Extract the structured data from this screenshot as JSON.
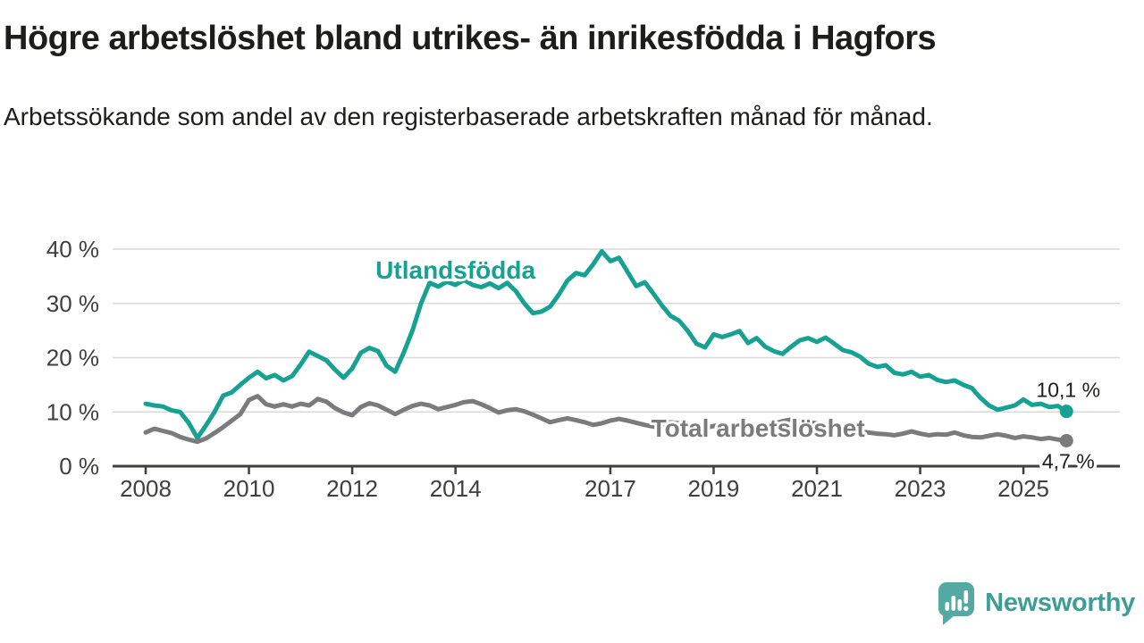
{
  "header": {
    "title": "Högre arbetslöshet bland utrikes- än inrikesfödda i Hagfors",
    "subtitle": "Arbetssökande som andel av den registerbaserade arbetskraften månad för månad."
  },
  "chart_data": {
    "type": "line",
    "unit": "%",
    "grid": "horizontal",
    "x_axis": {
      "tick_years": [
        2008,
        2010,
        2012,
        2014,
        2017,
        2019,
        2021,
        2023,
        2025
      ],
      "tick_labels": [
        "2008",
        "2010",
        "2012",
        "2014",
        "2017",
        "2019",
        "2021",
        "2023",
        "2025"
      ]
    },
    "y_axis": {
      "ticks": [
        0,
        10,
        20,
        30,
        40
      ],
      "tick_labels": [
        "0 %",
        "10 %",
        "20 %",
        "30 %",
        "40 %"
      ],
      "range": [
        0,
        42
      ]
    },
    "x_start_year": 2008.0,
    "x_step_years": 0.16667,
    "x_end_year": 2025.83,
    "series": [
      {
        "name": "Utlandsfödda",
        "color": "#17a192",
        "label_anchor": {
          "year": 2014.0,
          "pct": 34.6
        },
        "end_annotation": {
          "text": "10,1 %",
          "value": 10.1,
          "position": "above"
        },
        "values": [
          11.5,
          11.2,
          11.0,
          10.3,
          10.0,
          8.0,
          5.2,
          7.5,
          10.0,
          13.0,
          13.6,
          15.0,
          16.3,
          17.4,
          16.2,
          16.8,
          15.8,
          16.6,
          18.7,
          21.1,
          20.3,
          19.5,
          17.8,
          16.3,
          18.0,
          20.9,
          21.8,
          21.2,
          18.5,
          17.4,
          21.0,
          25.0,
          30.0,
          33.8,
          33.1,
          34.0,
          33.4,
          34.3,
          33.4,
          33.0,
          33.7,
          32.8,
          33.8,
          32.3,
          30.0,
          28.2,
          28.5,
          29.4,
          31.6,
          34.2,
          35.6,
          35.2,
          37.2,
          39.6,
          37.8,
          38.4,
          35.8,
          33.2,
          33.9,
          31.8,
          29.6,
          27.7,
          26.8,
          24.9,
          22.6,
          21.9,
          24.3,
          23.8,
          24.3,
          24.9,
          22.7,
          23.6,
          22.0,
          21.2,
          20.7,
          22.0,
          23.2,
          23.6,
          22.9,
          23.7,
          22.6,
          21.4,
          21.0,
          20.2,
          18.9,
          18.3,
          18.6,
          17.2,
          16.9,
          17.4,
          16.5,
          16.8,
          15.9,
          15.5,
          15.8,
          15.0,
          14.4,
          12.6,
          11.2,
          10.4,
          10.8,
          11.2,
          12.3,
          11.3,
          11.5,
          10.9,
          11.1,
          10.1
        ]
      },
      {
        "name": "Total arbetslöshet",
        "color": "#7b7b7e",
        "label_anchor": {
          "year": 2019.86,
          "pct": 5.4
        },
        "end_annotation": {
          "text": "4,7 %",
          "value": 4.7,
          "position": "below"
        },
        "values": [
          6.2,
          6.9,
          6.5,
          6.1,
          5.4,
          4.9,
          4.5,
          5.1,
          6.1,
          7.2,
          8.4,
          9.6,
          12.2,
          12.9,
          11.4,
          11.0,
          11.4,
          11.0,
          11.5,
          11.2,
          12.4,
          11.9,
          10.7,
          9.9,
          9.4,
          10.9,
          11.6,
          11.2,
          10.4,
          9.6,
          10.4,
          11.1,
          11.5,
          11.2,
          10.5,
          10.9,
          11.3,
          11.8,
          12.0,
          11.4,
          10.7,
          9.9,
          10.3,
          10.5,
          10.1,
          9.5,
          8.8,
          8.1,
          8.5,
          8.8,
          8.5,
          8.1,
          7.6,
          7.9,
          8.4,
          8.7,
          8.4,
          8.0,
          7.6,
          7.3,
          7.8,
          8.1,
          7.9,
          7.5,
          7.2,
          7.0,
          7.4,
          7.6,
          7.4,
          7.2,
          7.0,
          7.1,
          7.4,
          7.8,
          8.3,
          8.6,
          8.4,
          8.1,
          7.9,
          7.7,
          7.3,
          7.0,
          6.7,
          6.4,
          6.2,
          6.0,
          5.9,
          5.7,
          6.0,
          6.4,
          6.0,
          5.7,
          5.9,
          5.8,
          6.2,
          5.7,
          5.4,
          5.3,
          5.6,
          5.9,
          5.6,
          5.2,
          5.5,
          5.3,
          5.0,
          5.2,
          4.9,
          4.7
        ]
      }
    ],
    "colors": {
      "gridline": "#d9d9d9",
      "axis": "#3f3f3e",
      "tick_text": "#3f3f3e",
      "annotation_text": "#1d1d1b"
    }
  },
  "branding": {
    "logo_text": "Newsworthy",
    "logo_icon": "speech-bubble-bar-chart",
    "logo_color": "#55a9a3"
  }
}
